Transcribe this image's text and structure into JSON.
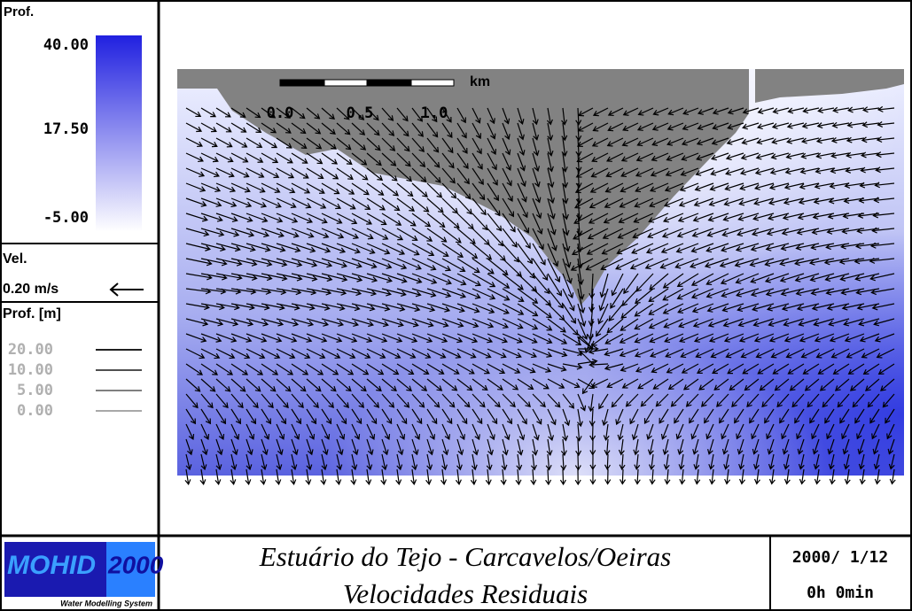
{
  "depth_legend": {
    "title": "Prof.",
    "labels": [
      "40.00",
      "17.50",
      "-5.00"
    ]
  },
  "velocity_legend": {
    "title": "Vel.",
    "scale": "0.20 m/s"
  },
  "contour_legend": {
    "title": "Prof. [m]",
    "labels": [
      "20.00",
      "10.00",
      "5.00",
      "0.00"
    ]
  },
  "scale_bar": {
    "labels": [
      "0.0",
      "0.5",
      "1.0"
    ],
    "unit": "km"
  },
  "logo": {
    "name": "MOHID",
    "year": "2000",
    "tagline": "Water Modelling System"
  },
  "footer": {
    "title_lines": [
      "Estuário do Tejo - Carcavelos/Oeiras",
      "Velocidades Residuais"
    ],
    "date": "2000/ 1/12",
    "time": "0h 0min"
  }
}
